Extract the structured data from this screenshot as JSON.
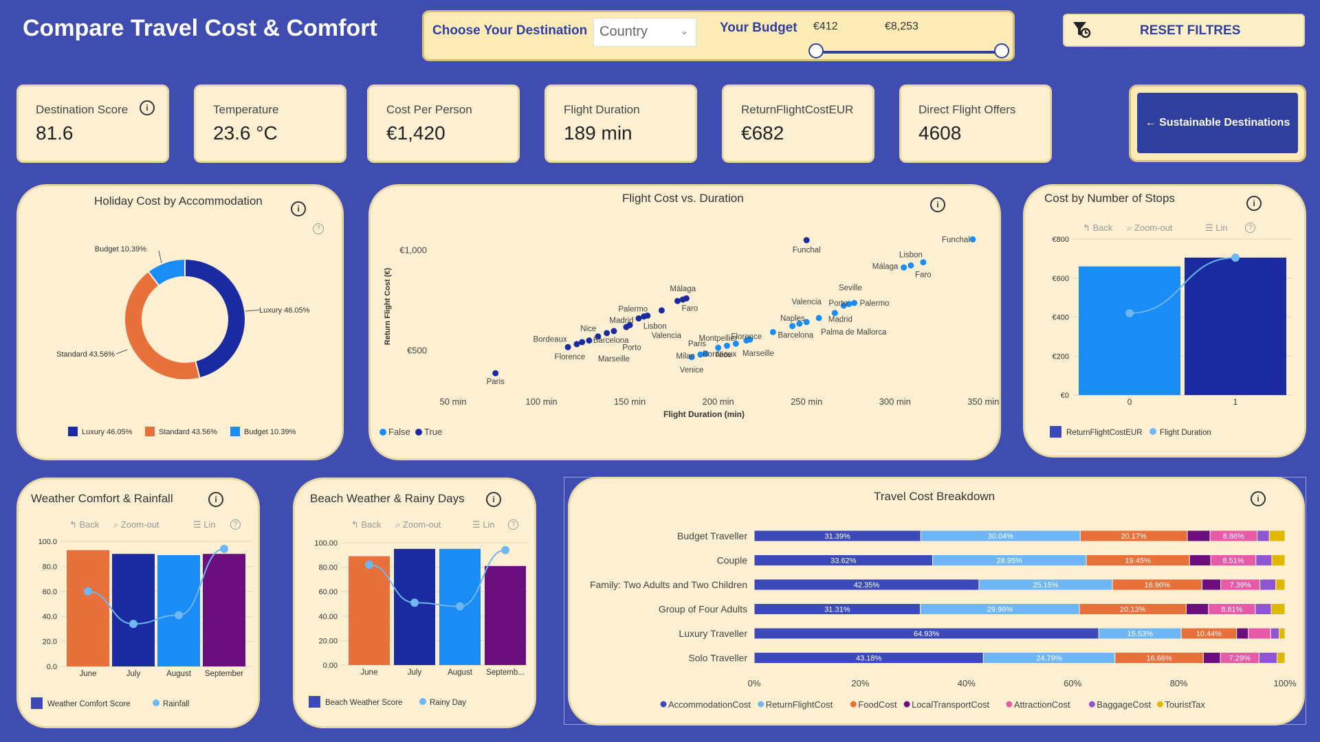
{
  "header": {
    "title": "Compare Travel Cost & Comfort"
  },
  "filters": {
    "destination_label": "Choose Your Destination",
    "destination_value": "Country",
    "budget_label": "Your Budget",
    "budget_min": "€412",
    "budget_max": "€8,253",
    "budget_range": [
      412,
      8253
    ],
    "reset_label": "RESET FILTRES"
  },
  "kpis": [
    {
      "label": "Destination Score",
      "value": "81.6"
    },
    {
      "label": "Temperature",
      "value": "23.6 °C"
    },
    {
      "label": "Cost Per Person",
      "value": "€1,420"
    },
    {
      "label": "Flight Duration",
      "value": "189 min"
    },
    {
      "label": "ReturnFlightCostEUR",
      "value": "€682"
    },
    {
      "label": "Direct Flight Offers",
      "value": "4608"
    }
  ],
  "sustainable_button": "← Sustainable Destinations",
  "info_glyph": "i",
  "help_glyph": "?",
  "toolbar": {
    "back": "Back",
    "zoom": "Zoom-out",
    "lin": "Lin"
  },
  "colors": {
    "luxury": "#1a2aa0",
    "standard": "#e8703a",
    "budget": "#1a8cf5",
    "purple": "#6b0f7e",
    "background": "#3f4db0",
    "card": "#fdf0d2"
  },
  "charts": {
    "donut": {
      "title": "Holiday Cost by Accommodation",
      "chart_data": {
        "type": "pie",
        "slices": [
          {
            "name": "Luxury",
            "value": 46.05,
            "label": "Luxury 46.05%",
            "color": "#1a2aa0"
          },
          {
            "name": "Standard",
            "value": 43.56,
            "label": "Standard 43.56%",
            "color": "#e8703a"
          },
          {
            "name": "Budget",
            "value": 10.39,
            "label": "Budget 10.39%",
            "color": "#1a8cf5"
          }
        ]
      }
    },
    "scatter": {
      "title": "Flight Cost vs. Duration",
      "chart_data": {
        "type": "scatter",
        "xlabel": "Flight Duration (min)",
        "ylabel": "Return Flight Cost (€)",
        "xlim": [
          22,
          360
        ],
        "ylim": [
          290,
          1180
        ],
        "xticks": [
          {
            "v": 50,
            "l": "50 min"
          },
          {
            "v": 100,
            "l": "100 min"
          },
          {
            "v": 150,
            "l": "150 min"
          },
          {
            "v": 200,
            "l": "200 min"
          },
          {
            "v": 250,
            "l": "250 min"
          },
          {
            "v": 300,
            "l": "300 min"
          },
          {
            "v": 350,
            "l": "350 min"
          }
        ],
        "yticks": [
          {
            "v": 500,
            "l": "€500"
          },
          {
            "v": 1000,
            "l": "€1,000"
          }
        ],
        "legend": [
          {
            "name": "False",
            "color": "#1a8cf5"
          },
          {
            "name": "True",
            "color": "#1a2aa0"
          }
        ],
        "points": [
          {
            "x": 74,
            "y": 385,
            "s": 1
          },
          {
            "x": 115,
            "y": 515,
            "s": 1
          },
          {
            "x": 120,
            "y": 530,
            "s": 1
          },
          {
            "x": 123,
            "y": 540,
            "s": 1
          },
          {
            "x": 127,
            "y": 548,
            "s": 1
          },
          {
            "x": 132,
            "y": 568,
            "s": 1
          },
          {
            "x": 137,
            "y": 585,
            "s": 1
          },
          {
            "x": 141,
            "y": 595,
            "s": 1
          },
          {
            "x": 148,
            "y": 615,
            "s": 1
          },
          {
            "x": 150,
            "y": 625,
            "s": 1
          },
          {
            "x": 155,
            "y": 658,
            "s": 1
          },
          {
            "x": 158,
            "y": 668,
            "s": 1
          },
          {
            "x": 160,
            "y": 672,
            "s": 1
          },
          {
            "x": 168,
            "y": 698,
            "s": 1
          },
          {
            "x": 177,
            "y": 745,
            "s": 1
          },
          {
            "x": 180,
            "y": 752,
            "s": 1
          },
          {
            "x": 182,
            "y": 758,
            "s": 1
          },
          {
            "x": 250,
            "y": 1048,
            "s": 1
          },
          {
            "x": 185,
            "y": 465,
            "s": 0
          },
          {
            "x": 190,
            "y": 478,
            "s": 0
          },
          {
            "x": 193,
            "y": 482,
            "s": 0
          },
          {
            "x": 200,
            "y": 512,
            "s": 0
          },
          {
            "x": 205,
            "y": 522,
            "s": 0
          },
          {
            "x": 210,
            "y": 532,
            "s": 0
          },
          {
            "x": 216,
            "y": 548,
            "s": 0
          },
          {
            "x": 218,
            "y": 553,
            "s": 0
          },
          {
            "x": 231,
            "y": 590,
            "s": 0
          },
          {
            "x": 242,
            "y": 620,
            "s": 0
          },
          {
            "x": 246,
            "y": 632,
            "s": 0
          },
          {
            "x": 250,
            "y": 640,
            "s": 0
          },
          {
            "x": 257,
            "y": 660,
            "s": 0
          },
          {
            "x": 266,
            "y": 685,
            "s": 0
          },
          {
            "x": 271,
            "y": 722,
            "s": 0
          },
          {
            "x": 274,
            "y": 730,
            "s": 0
          },
          {
            "x": 277,
            "y": 735,
            "s": 0
          },
          {
            "x": 305,
            "y": 912,
            "s": 0
          },
          {
            "x": 309,
            "y": 922,
            "s": 0
          },
          {
            "x": 316,
            "y": 938,
            "s": 0
          },
          {
            "x": 344,
            "y": 1052,
            "s": 0
          }
        ],
        "labels": [
          {
            "x": 74,
            "y": 385,
            "t": "Paris",
            "dx": 0,
            "dy": 16,
            "a": "middle"
          },
          {
            "x": 115,
            "y": 515,
            "t": "Bordeaux",
            "dx": -26,
            "dy": -8,
            "a": "middle"
          },
          {
            "x": 120,
            "y": 530,
            "t": "Florence",
            "dx": -10,
            "dy": 22,
            "a": "middle"
          },
          {
            "x": 132,
            "y": 568,
            "t": "Nice",
            "dx": -14,
            "dy": -8,
            "a": "middle"
          },
          {
            "x": 148,
            "y": 615,
            "t": "Madrid",
            "dx": -7,
            "dy": -6,
            "a": "middle"
          },
          {
            "x": 137,
            "y": 585,
            "t": "Barcelona",
            "dx": 6,
            "dy": 14,
            "a": "middle"
          },
          {
            "x": 141,
            "y": 595,
            "t": "Marseille",
            "dx": 0,
            "dy": 44,
            "a": "middle"
          },
          {
            "x": 160,
            "y": 672,
            "t": "Palermo",
            "dx": -21,
            "dy": -6,
            "a": "middle"
          },
          {
            "x": 158,
            "y": 668,
            "t": "Lisbon",
            "dx": 16,
            "dy": 18,
            "a": "middle"
          },
          {
            "x": 155,
            "y": 658,
            "t": "Porto",
            "dx": -10,
            "dy": 46,
            "a": "middle"
          },
          {
            "x": 168,
            "y": 698,
            "t": "Valencia",
            "dx": 7,
            "dy": 40,
            "a": "middle"
          },
          {
            "x": 180,
            "y": 752,
            "t": "Málaga",
            "dx": 0,
            "dy": -12,
            "a": "middle"
          },
          {
            "x": 182,
            "y": 758,
            "t": "Faro",
            "dx": 5,
            "dy": 18,
            "a": "middle"
          },
          {
            "x": 250,
            "y": 1048,
            "t": "Funchal",
            "dx": 0,
            "dy": 18,
            "a": "middle"
          },
          {
            "x": 200,
            "y": 512,
            "t": "Montpellier",
            "dx": 0,
            "dy": -10,
            "a": "middle"
          },
          {
            "x": 190,
            "y": 478,
            "t": "Paris",
            "dx": -5,
            "dy": -12,
            "a": "middle"
          },
          {
            "x": 200,
            "y": 512,
            "t": "Nice",
            "dx": 8,
            "dy": 14,
            "a": "middle"
          },
          {
            "x": 185,
            "y": 465,
            "t": "Milan",
            "dx": -9,
            "dy": 2,
            "a": "middle"
          },
          {
            "x": 193,
            "y": 482,
            "t": "Bordeaux",
            "dx": 20,
            "dy": 4,
            "a": "middle"
          },
          {
            "x": 185,
            "y": 465,
            "t": "Venice",
            "dx": 0,
            "dy": 22,
            "a": "middle"
          },
          {
            "x": 216,
            "y": 548,
            "t": "Florence",
            "dx": 0,
            "dy": -2,
            "a": "middle"
          },
          {
            "x": 231,
            "y": 590,
            "t": "Barcelona",
            "dx": 7,
            "dy": 8,
            "a": "start"
          },
          {
            "x": 218,
            "y": 553,
            "t": "Marseille",
            "dx": 12,
            "dy": 24,
            "a": "middle"
          },
          {
            "x": 246,
            "y": 632,
            "t": "Naples",
            "dx": -10,
            "dy": -4,
            "a": "middle"
          },
          {
            "x": 250,
            "y": 640,
            "t": "Valencia",
            "dx": 0,
            "dy": -26,
            "a": "middle"
          },
          {
            "x": 257,
            "y": 660,
            "t": "Palma de Mallorca",
            "dx": 3,
            "dy": 24,
            "a": "start"
          },
          {
            "x": 266,
            "y": 685,
            "t": "Madrid",
            "dx": 8,
            "dy": 13,
            "a": "middle"
          },
          {
            "x": 271,
            "y": 722,
            "t": "Porto",
            "dx": -8,
            "dy": 0,
            "a": "middle"
          },
          {
            "x": 274,
            "y": 730,
            "t": "Seville",
            "dx": 2,
            "dy": -20,
            "a": "middle"
          },
          {
            "x": 277,
            "y": 735,
            "t": "Palermo",
            "dx": 8,
            "dy": 4,
            "a": "start"
          },
          {
            "x": 305,
            "y": 912,
            "t": "Málaga",
            "dx": -27,
            "dy": 2,
            "a": "middle"
          },
          {
            "x": 309,
            "y": 922,
            "t": "Lisbon",
            "dx": 0,
            "dy": -12,
            "a": "middle"
          },
          {
            "x": 316,
            "y": 938,
            "t": "Faro",
            "dx": 0,
            "dy": 22,
            "a": "middle"
          },
          {
            "x": 344,
            "y": 1052,
            "t": "Funchal",
            "dx": -4,
            "dy": 4,
            "a": "end"
          }
        ]
      }
    },
    "stops": {
      "title": "Cost by Number of Stops",
      "chart_data": {
        "type": "bar",
        "categories": [
          "0",
          "1"
        ],
        "series": [
          {
            "name": "ReturnFlightCostEUR",
            "values": [
              660,
              705
            ],
            "colors": [
              "#1a8cf5",
              "#1a2aa0"
            ]
          },
          {
            "name": "Flight Duration",
            "values": [
              420,
              705
            ],
            "type": "line",
            "color": "#6fb6f5"
          }
        ],
        "ylim": [
          0,
          800
        ],
        "yticks": [
          {
            "v": 0,
            "l": "€0"
          },
          {
            "v": 200,
            "l": "€200"
          },
          {
            "v": 400,
            "l": "€400"
          },
          {
            "v": 600,
            "l": "€600"
          },
          {
            "v": 800,
            "l": "€800"
          }
        ]
      }
    },
    "weather": {
      "title": "Weather Comfort & Rainfall",
      "chart_data": {
        "type": "bar",
        "categories": [
          "June",
          "July",
          "August",
          "September"
        ],
        "series": [
          {
            "name": "Weather Comfort Score",
            "values": [
              93,
              90,
              89,
              90
            ],
            "colors": [
              "#e8703a",
              "#1a2aa0",
              "#1a8cf5",
              "#6b0f7e"
            ]
          },
          {
            "name": "Rainfall",
            "values": [
              60,
              34,
              41,
              94
            ],
            "type": "line",
            "color": "#6fb6f5"
          }
        ],
        "ylim": [
          0,
          100
        ],
        "yticks": [
          {
            "v": 0,
            "l": "0.0"
          },
          {
            "v": 20,
            "l": "20.0"
          },
          {
            "v": 40,
            "l": "40.0"
          },
          {
            "v": 60,
            "l": "60.0"
          },
          {
            "v": 80,
            "l": "80.0"
          },
          {
            "v": 100,
            "l": "100.0"
          }
        ]
      }
    },
    "beach": {
      "title": "Beach Weather & Rainy Days",
      "chart_data": {
        "type": "bar",
        "categories": [
          "June",
          "July",
          "August",
          "Septemb..."
        ],
        "series": [
          {
            "name": "Beach Weather Score",
            "values": [
              89,
              95,
              95,
              81
            ],
            "colors": [
              "#e8703a",
              "#1a2aa0",
              "#1a8cf5",
              "#6b0f7e"
            ]
          },
          {
            "name": "Rainy Day",
            "values": [
              82,
              51,
              48,
              94
            ],
            "type": "line",
            "color": "#6fb6f5"
          }
        ],
        "ylim": [
          0,
          100
        ],
        "yticks": [
          {
            "v": 0,
            "l": "0.00"
          },
          {
            "v": 20,
            "l": "20.00"
          },
          {
            "v": 40,
            "l": "40.00"
          },
          {
            "v": 60,
            "l": "60.00"
          },
          {
            "v": 80,
            "l": "80.00"
          },
          {
            "v": 100,
            "l": "100.00"
          }
        ]
      }
    },
    "breakdown": {
      "title": "Travel Cost Breakdown",
      "chart_data": {
        "type": "bar",
        "stacked": true,
        "orientation": "horizontal",
        "xticks": [
          {
            "v": 0,
            "l": "0%"
          },
          {
            "v": 20,
            "l": "20%"
          },
          {
            "v": 40,
            "l": "40%"
          },
          {
            "v": 60,
            "l": "60%"
          },
          {
            "v": 80,
            "l": "80%"
          },
          {
            "v": 100,
            "l": "100%"
          }
        ],
        "segments": [
          {
            "name": "AccommodationCost",
            "color": "#3b4ab8"
          },
          {
            "name": "ReturnFlightCost",
            "color": "#6fb6f5"
          },
          {
            "name": "FoodCost",
            "color": "#e8703a"
          },
          {
            "name": "LocalTransportCost",
            "color": "#6b0f7e"
          },
          {
            "name": "AttractionCost",
            "color": "#e75aa8"
          },
          {
            "name": "BaggageCost",
            "color": "#8f55d0"
          },
          {
            "name": "TouristTax",
            "color": "#e0b800"
          }
        ],
        "rows": [
          {
            "name": "Budget Traveller",
            "values": [
              31.39,
              30.04,
              20.17,
              4.3,
              8.86,
              2.3,
              2.94
            ],
            "labels": [
              "31.39%",
              "30.04%",
              "20.17%",
              "",
              "8.86%",
              "",
              ""
            ]
          },
          {
            "name": "Couple",
            "values": [
              33.62,
              28.95,
              19.45,
              4.0,
              8.51,
              3.0,
              2.47
            ],
            "labels": [
              "33.62%",
              "28.95%",
              "19.45%",
              "",
              "8.51%",
              "",
              ""
            ]
          },
          {
            "name": "Family: Two Adults and Two Children",
            "values": [
              42.35,
              25.15,
              16.9,
              3.5,
              7.39,
              3.0,
              1.71
            ],
            "labels": [
              "42.35%",
              "25.15%",
              "16.90%",
              "",
              "7.39%",
              "",
              ""
            ]
          },
          {
            "name": "Group of Four Adults",
            "values": [
              31.31,
              29.96,
              20.13,
              4.2,
              8.81,
              3.0,
              2.59
            ],
            "labels": [
              "31.31%",
              "29.96%",
              "20.13%",
              "",
              "8.81%",
              "",
              ""
            ]
          },
          {
            "name": "Luxury Traveller",
            "values": [
              64.93,
              15.53,
              10.44,
              2.2,
              4.2,
              1.6,
              1.1
            ],
            "labels": [
              "64.93%",
              "15.53%",
              "10.44%",
              "",
              "",
              "",
              ""
            ]
          },
          {
            "name": "Solo Traveller",
            "values": [
              43.18,
              24.79,
              16.66,
              3.2,
              7.29,
              3.4,
              1.48
            ],
            "labels": [
              "43.18%",
              "24.79%",
              "16.66%",
              "",
              "7.29%",
              "",
              ""
            ]
          }
        ]
      }
    }
  }
}
